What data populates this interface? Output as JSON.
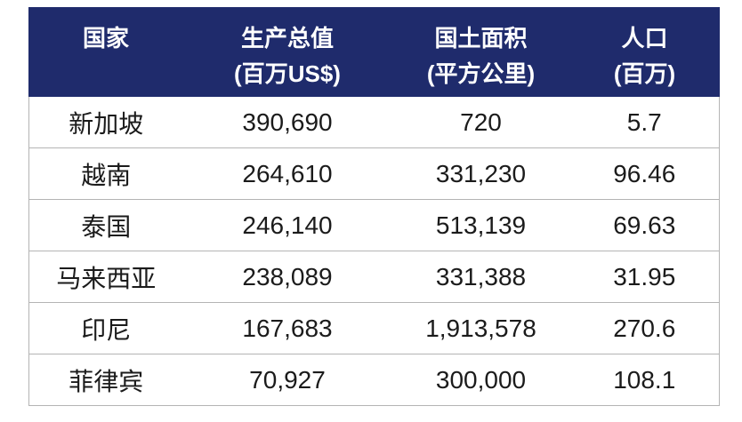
{
  "chart_data": {
    "type": "table",
    "columns": [
      {
        "name": "国家",
        "unit": ""
      },
      {
        "name": "生产总值",
        "unit": "(百万US$)"
      },
      {
        "name": "国土面积",
        "unit": "(平方公里)"
      },
      {
        "name": "人口",
        "unit": "(百万)"
      }
    ],
    "rows": [
      [
        "新加坡",
        "390,690",
        "720",
        "5.7"
      ],
      [
        "越南",
        "264,610",
        "331,230",
        "96.46"
      ],
      [
        "泰国",
        "246,140",
        "513,139",
        "69.63"
      ],
      [
        "马来西亚",
        "238,089",
        "331,388",
        "31.95"
      ],
      [
        "印尼",
        "167,683",
        "1,913,578",
        "270.6"
      ],
      [
        "菲律宾",
        "70,927",
        "300,000",
        "108.1"
      ]
    ]
  },
  "colors": {
    "header_background": "#1f2b6c",
    "header_text": "#ffffff",
    "border": "#b4b4b4",
    "body_text": "#1b1b1b"
  }
}
